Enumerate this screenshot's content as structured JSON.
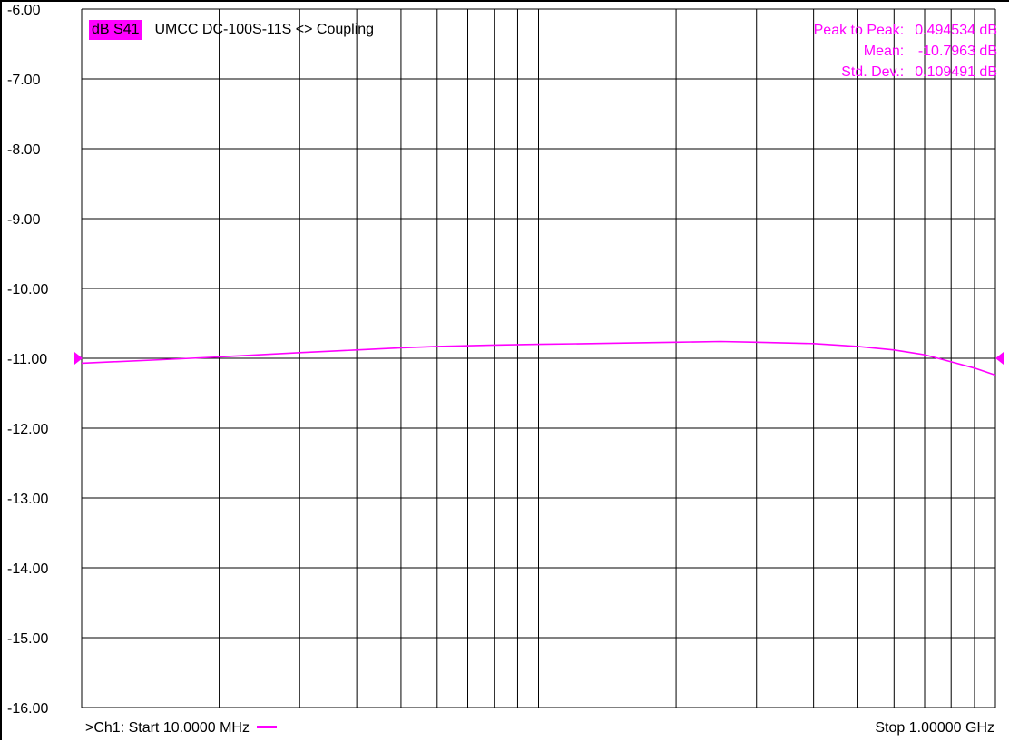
{
  "colors": {
    "trace": "#ff00ff",
    "grid": "#000000",
    "background": "#ffffff"
  },
  "trace_title": {
    "parameter": "dB S41",
    "text": "UMCC  DC-100S-11S <> Coupling"
  },
  "stats": [
    {
      "label": "Peak to Peak:",
      "value": "0.494534 dB"
    },
    {
      "label": "Mean:",
      "value": "-10.7963 dB"
    },
    {
      "label": "Std. Dev.:",
      "value": "0.109491 dB"
    }
  ],
  "footer": {
    "start": ">Ch1: Start  10.0000 MHz",
    "stop": "Stop  1.00000 GHz"
  },
  "chart_data": {
    "type": "line",
    "x_scale": "log",
    "x_unit": "MHz",
    "xlim": [
      10,
      1000
    ],
    "ylim": [
      -16,
      -6
    ],
    "yticks": [
      "-6.00",
      "-7.00",
      "-8.00",
      "-9.00",
      "-10.00",
      "-11.00",
      "-12.00",
      "-13.00",
      "-14.00",
      "-15.00",
      "-16.00"
    ],
    "grid": true,
    "reference_level": -11,
    "series": [
      {
        "x": [
          10,
          15,
          20,
          30,
          40,
          50,
          60,
          80,
          100,
          130,
          160,
          200,
          250,
          300,
          400,
          500,
          600,
          700,
          800,
          900,
          1000
        ],
        "y": [
          -11.07,
          -11.02,
          -10.98,
          -10.92,
          -10.88,
          -10.85,
          -10.83,
          -10.81,
          -10.8,
          -10.79,
          -10.78,
          -10.77,
          -10.76,
          -10.77,
          -10.79,
          -10.83,
          -10.88,
          -10.95,
          -11.05,
          -11.14,
          -11.24
        ]
      }
    ]
  }
}
